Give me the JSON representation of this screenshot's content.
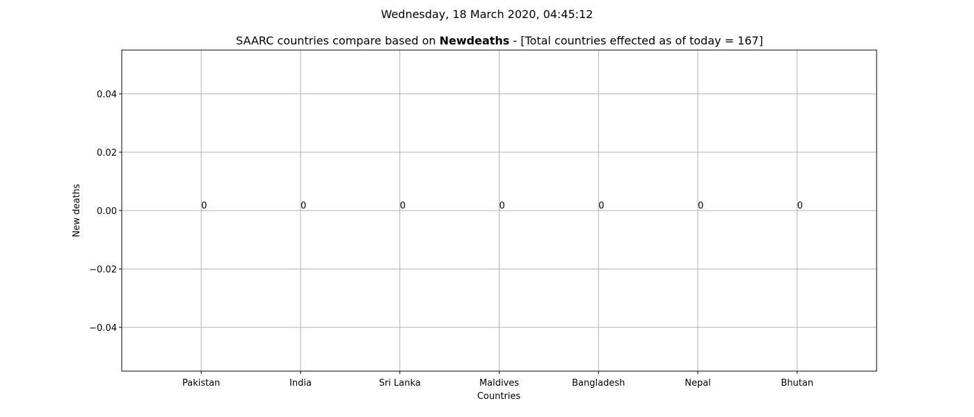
{
  "chart_data": {
    "type": "bar",
    "suptitle": "Wednesday, 18 March 2020, 04:45:12",
    "title_prefix": "SAARC countries compare based on ",
    "title_bold": "Newdeaths",
    "title_suffix": " - [Total countries effected as of today = 167]",
    "xlabel": "Countries",
    "ylabel": "New deaths",
    "categories": [
      "Pakistan",
      "India",
      "Sri Lanka",
      "Maldives",
      "Bangladesh",
      "Nepal",
      "Bhutan"
    ],
    "values": [
      0,
      0,
      0,
      0,
      0,
      0,
      0
    ],
    "data_labels": [
      "0",
      "0",
      "0",
      "0",
      "0",
      "0",
      "0"
    ],
    "ylim": [
      -0.055,
      0.055
    ],
    "yticks": [
      0.04,
      0.02,
      0.0,
      -0.02,
      -0.04
    ],
    "ytick_labels": [
      "0.04",
      "0.02",
      "0.00",
      "−0.02",
      "−0.04"
    ],
    "grid": true,
    "bar_color": "#1f77b4"
  }
}
